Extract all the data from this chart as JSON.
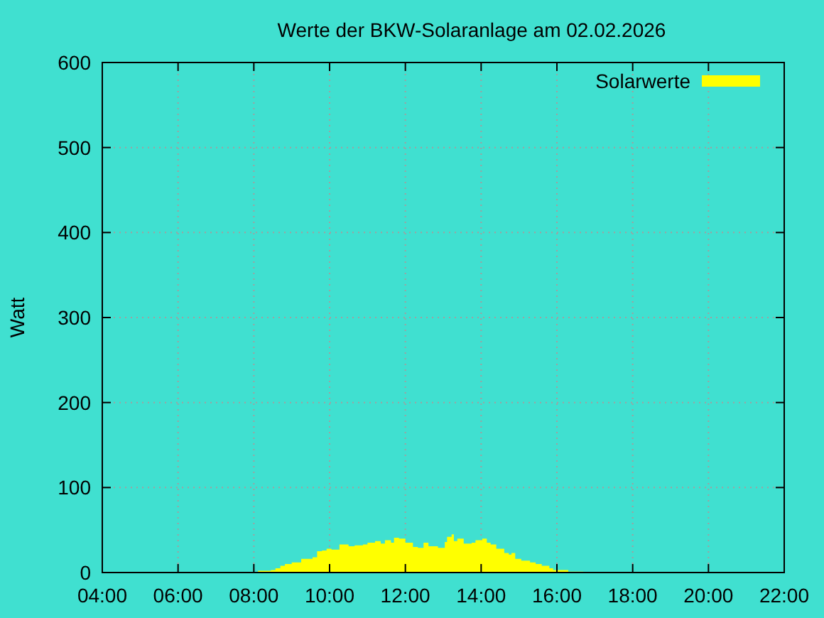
{
  "chart_data": {
    "type": "area",
    "title": "Werte der BKW-Solaranlage am 02.02.2026",
    "ylabel": "Watt",
    "x": [
      8.11,
      8.45,
      8.57,
      8.7,
      8.82,
      9.0,
      9.25,
      9.55,
      9.67,
      9.8,
      9.92,
      10.05,
      10.26,
      10.5,
      10.66,
      10.88,
      11.0,
      11.2,
      11.35,
      11.46,
      11.62,
      11.7,
      11.83,
      12.0,
      12.2,
      12.33,
      12.48,
      12.61,
      12.86,
      13.04,
      13.1,
      13.22,
      13.28,
      13.37,
      13.54,
      13.75,
      13.85,
      14.03,
      14.15,
      14.25,
      14.4,
      14.61,
      14.73,
      14.8,
      14.9,
      15.06,
      15.29,
      15.44,
      15.6,
      15.8,
      15.9,
      16.3,
      16.7
    ],
    "series": [
      {
        "name": "Solarwerte",
        "color": "#ffff00",
        "values": [
          2,
          3,
          5,
          8,
          10,
          12,
          16,
          18,
          25,
          26,
          28,
          27,
          33,
          31,
          32,
          33,
          35,
          37,
          34,
          38,
          35,
          41,
          40,
          35,
          30,
          29,
          35,
          31,
          29,
          36,
          42,
          45,
          37,
          40,
          34,
          35,
          38,
          40,
          35,
          33,
          28,
          23,
          21,
          23,
          16,
          14,
          12,
          10,
          8,
          5,
          3,
          1,
          0
        ]
      }
    ],
    "xlim": [
      4,
      22
    ],
    "xticks": [
      {
        "value": 4,
        "label": "04:00"
      },
      {
        "value": 6,
        "label": "06:00"
      },
      {
        "value": 8,
        "label": "08:00"
      },
      {
        "value": 10,
        "label": "10:00"
      },
      {
        "value": 12,
        "label": "12:00"
      },
      {
        "value": 14,
        "label": "14:00"
      },
      {
        "value": 16,
        "label": "16:00"
      },
      {
        "value": 18,
        "label": "18:00"
      },
      {
        "value": 20,
        "label": "20:00"
      },
      {
        "value": 22,
        "label": "22:00"
      }
    ],
    "ylim": [
      0,
      600
    ],
    "yticks": [
      0,
      100,
      200,
      300,
      400,
      500,
      600
    ],
    "grid": true,
    "legend": "top right"
  }
}
